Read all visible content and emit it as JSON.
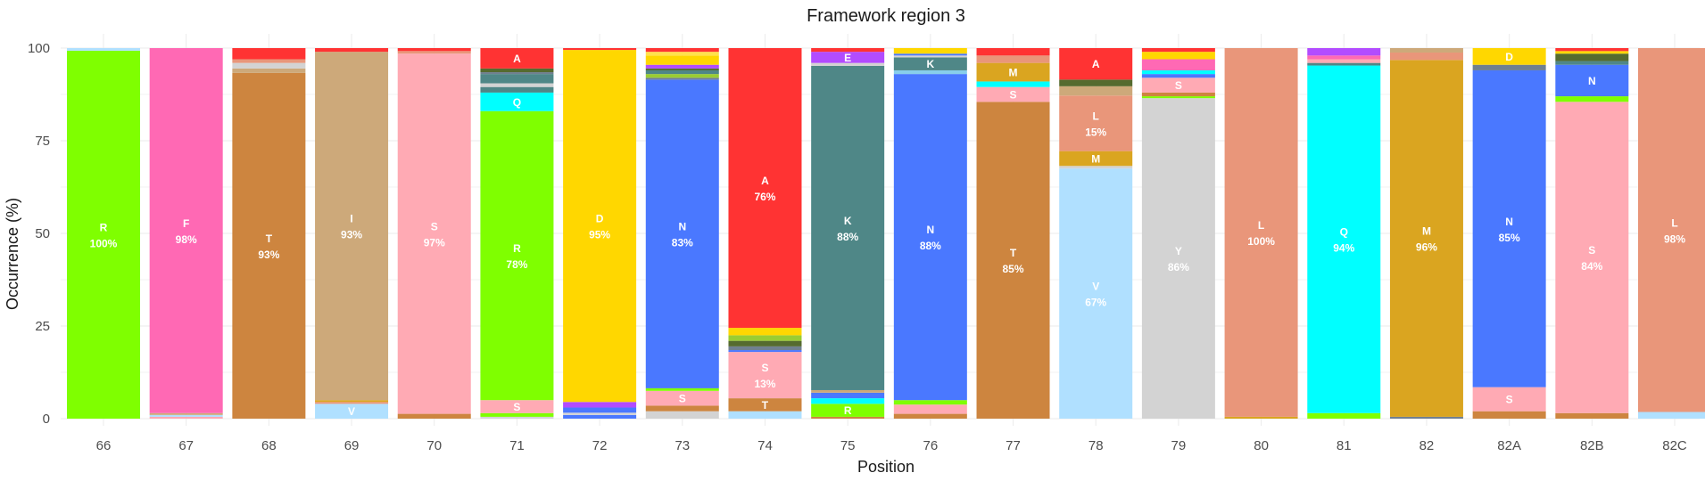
{
  "chart_data": {
    "type": "bar",
    "stacked": true,
    "title": "Framework region 3",
    "xlabel": "Position",
    "ylabel": "Occurrence (%)",
    "ylim": [
      0,
      100
    ],
    "yticks": [
      0,
      25,
      50,
      75,
      100
    ],
    "grid": true,
    "legend": "none",
    "categories": [
      "66",
      "67",
      "68",
      "69",
      "70",
      "71",
      "72",
      "73",
      "74",
      "75",
      "76",
      "77",
      "78",
      "79",
      "80",
      "81",
      "82",
      "82A",
      "82B",
      "82C"
    ],
    "colors": {
      "A": "#ff3333",
      "R": "#7fff00",
      "N": "#4a78ff",
      "D": "#ffd700",
      "C": "#ffe14d",
      "Q": "#00ffff",
      "E": "#b24cff",
      "G": "#ededed",
      "H": "#87ceeb",
      "I": "#cda97a",
      "L": "#e9967a",
      "K": "#4f8787",
      "M": "#daa520",
      "F": "#ff69b4",
      "P": "#b8860b",
      "S": "#ffaab4",
      "T": "#cd853f",
      "W": "#556b2f",
      "Y": "#d3d3d3",
      "V": "#b0e0ff",
      "X": "#708090",
      "Z": "#9acd32"
    },
    "bars": [
      {
        "position": "66",
        "segments": [
          {
            "aa": "R",
            "value": 99.3,
            "label": "R",
            "pct": "100%"
          },
          {
            "aa": "V",
            "value": 0.7
          }
        ]
      },
      {
        "position": "67",
        "segments": [
          {
            "aa": "S",
            "value": 0.5
          },
          {
            "aa": "V",
            "value": 0.5
          },
          {
            "aa": "I",
            "value": 0.5
          },
          {
            "aa": "F",
            "value": 98.5,
            "label": "F",
            "pct": "98%"
          }
        ]
      },
      {
        "position": "68",
        "segments": [
          {
            "aa": "T",
            "value": 93.3,
            "label": "T",
            "pct": "93%"
          },
          {
            "aa": "I",
            "value": 1.2
          },
          {
            "aa": "Y",
            "value": 1.5
          },
          {
            "aa": "L",
            "value": 1.0
          },
          {
            "aa": "A",
            "value": 3.0
          }
        ]
      },
      {
        "position": "69",
        "segments": [
          {
            "aa": "V",
            "value": 4.0,
            "label": "V"
          },
          {
            "aa": "L",
            "value": 0.5
          },
          {
            "aa": "M",
            "value": 0.5
          },
          {
            "aa": "I",
            "value": 94.0,
            "label": "I",
            "pct": "93%"
          },
          {
            "aa": "A",
            "value": 1.0
          }
        ]
      },
      {
        "position": "70",
        "segments": [
          {
            "aa": "T",
            "value": 1.3
          },
          {
            "aa": "S",
            "value": 97.2,
            "label": "S",
            "pct": "97%"
          },
          {
            "aa": "L",
            "value": 0.7
          },
          {
            "aa": "A",
            "value": 0.8
          }
        ]
      },
      {
        "position": "71",
        "segments": [
          {
            "aa": "Y",
            "value": 0.5
          },
          {
            "aa": "R",
            "value": 1.0
          },
          {
            "aa": "S",
            "value": 3.5,
            "label": "S"
          },
          {
            "aa": "R",
            "value": 78.0,
            "label": "R",
            "pct": "78%"
          },
          {
            "aa": "Q",
            "value": 5.0,
            "label": "Q"
          },
          {
            "aa": "K",
            "value": 1.5
          },
          {
            "aa": "Y",
            "value": 1.0
          },
          {
            "aa": "K",
            "value": 2.5
          },
          {
            "aa": "X",
            "value": 0.5
          },
          {
            "aa": "W",
            "value": 1.0
          },
          {
            "aa": "A",
            "value": 5.5,
            "label": "A"
          }
        ]
      },
      {
        "position": "72",
        "segments": [
          {
            "aa": "N",
            "value": 1.0
          },
          {
            "aa": "Y",
            "value": 0.6
          },
          {
            "aa": "N",
            "value": 1.4
          },
          {
            "aa": "E",
            "value": 1.5
          },
          {
            "aa": "D",
            "value": 95.0,
            "label": "D",
            "pct": "95%"
          },
          {
            "aa": "A",
            "value": 0.5
          }
        ]
      },
      {
        "position": "73",
        "segments": [
          {
            "aa": "Y",
            "value": 2.0
          },
          {
            "aa": "T",
            "value": 1.5
          },
          {
            "aa": "S",
            "value": 4.0,
            "label": "S"
          },
          {
            "aa": "R",
            "value": 0.7
          },
          {
            "aa": "N",
            "value": 83.3,
            "label": "N",
            "pct": "83%"
          },
          {
            "aa": "X",
            "value": 0.5
          },
          {
            "aa": "Z",
            "value": 1.0
          },
          {
            "aa": "K",
            "value": 1.0
          },
          {
            "aa": "W",
            "value": 0.5
          },
          {
            "aa": "E",
            "value": 1.0
          },
          {
            "aa": "D",
            "value": 2.5
          },
          {
            "aa": "C",
            "value": 1.0
          },
          {
            "aa": "A",
            "value": 1.0
          }
        ]
      },
      {
        "position": "74",
        "segments": [
          {
            "aa": "V",
            "value": 2.0
          },
          {
            "aa": "T",
            "value": 3.5,
            "label": "T"
          },
          {
            "aa": "S",
            "value": 12.5,
            "label": "S",
            "pct": "13%"
          },
          {
            "aa": "N",
            "value": 0.5
          },
          {
            "aa": "X",
            "value": 1.0
          },
          {
            "aa": "W",
            "value": 1.5
          },
          {
            "aa": "Z",
            "value": 1.5
          },
          {
            "aa": "D",
            "value": 2.0
          },
          {
            "aa": "A",
            "value": 75.5,
            "label": "A",
            "pct": "76%"
          }
        ]
      },
      {
        "position": "75",
        "segments": [
          {
            "aa": "T",
            "value": 0.5
          },
          {
            "aa": "R",
            "value": 3.5,
            "label": "R"
          },
          {
            "aa": "Q",
            "value": 1.5
          },
          {
            "aa": "N",
            "value": 1.5
          },
          {
            "aa": "I",
            "value": 0.7
          },
          {
            "aa": "K",
            "value": 87.5,
            "label": "K",
            "pct": "88%"
          },
          {
            "aa": "Y",
            "value": 0.8
          },
          {
            "aa": "E",
            "value": 3.0,
            "label": "E"
          },
          {
            "aa": "A",
            "value": 1.0
          }
        ]
      },
      {
        "position": "76",
        "segments": [
          {
            "aa": "T",
            "value": 1.3
          },
          {
            "aa": "S",
            "value": 2.5
          },
          {
            "aa": "R",
            "value": 1.2
          },
          {
            "aa": "N",
            "value": 88.0,
            "label": "N",
            "pct": "88%"
          },
          {
            "aa": "H",
            "value": 1.0
          },
          {
            "aa": "K",
            "value": 3.5,
            "label": "K"
          },
          {
            "aa": "Y",
            "value": 0.5
          },
          {
            "aa": "N",
            "value": 0.5
          },
          {
            "aa": "D",
            "value": 1.5
          }
        ]
      },
      {
        "position": "77",
        "segments": [
          {
            "aa": "T",
            "value": 85.5,
            "label": "T",
            "pct": "85%"
          },
          {
            "aa": "S",
            "value": 4.0,
            "label": "S"
          },
          {
            "aa": "Q",
            "value": 1.5
          },
          {
            "aa": "M",
            "value": 5.0,
            "label": "M"
          },
          {
            "aa": "L",
            "value": 2.0
          },
          {
            "aa": "A",
            "value": 2.0
          }
        ]
      },
      {
        "position": "78",
        "segments": [
          {
            "aa": "V",
            "value": 67.5,
            "label": "V",
            "pct": "67%"
          },
          {
            "aa": "Y",
            "value": 0.7
          },
          {
            "aa": "M",
            "value": 4.0,
            "label": "M"
          },
          {
            "aa": "L",
            "value": 15.0,
            "label": "L",
            "pct": "15%"
          },
          {
            "aa": "I",
            "value": 2.5
          },
          {
            "aa": "W",
            "value": 1.8
          },
          {
            "aa": "A",
            "value": 8.5,
            "label": "A"
          }
        ]
      },
      {
        "position": "79",
        "segments": [
          {
            "aa": "Y",
            "value": 86.5,
            "label": "Y",
            "pct": "86%"
          },
          {
            "aa": "R",
            "value": 0.5
          },
          {
            "aa": "T",
            "value": 1.0
          },
          {
            "aa": "S",
            "value": 4.0,
            "label": "S"
          },
          {
            "aa": "N",
            "value": 1.0
          },
          {
            "aa": "Q",
            "value": 1.0
          },
          {
            "aa": "F",
            "value": 3.0
          },
          {
            "aa": "D",
            "value": 2.0
          },
          {
            "aa": "A",
            "value": 1.0
          }
        ]
      },
      {
        "position": "80",
        "segments": [
          {
            "aa": "M",
            "value": 0.5
          },
          {
            "aa": "L",
            "value": 99.5,
            "label": "L",
            "pct": "100%"
          }
        ]
      },
      {
        "position": "81",
        "segments": [
          {
            "aa": "R",
            "value": 1.5
          },
          {
            "aa": "Q",
            "value": 93.8,
            "label": "Q",
            "pct": "94%"
          },
          {
            "aa": "K",
            "value": 0.7
          },
          {
            "aa": "S",
            "value": 1.0
          },
          {
            "aa": "F",
            "value": 1.0
          },
          {
            "aa": "E",
            "value": 2.0
          }
        ]
      },
      {
        "position": "82",
        "segments": [
          {
            "aa": "X",
            "value": 0.5
          },
          {
            "aa": "M",
            "value": 96.3,
            "label": "M",
            "pct": "96%"
          },
          {
            "aa": "L",
            "value": 2.0
          },
          {
            "aa": "I",
            "value": 1.2
          }
        ]
      },
      {
        "position": "82A",
        "segments": [
          {
            "aa": "T",
            "value": 2.0
          },
          {
            "aa": "S",
            "value": 6.5,
            "label": "S"
          },
          {
            "aa": "N",
            "value": 85.5,
            "label": "N",
            "pct": "85%"
          },
          {
            "aa": "X",
            "value": 1.5
          },
          {
            "aa": "D",
            "value": 4.5,
            "label": "D"
          }
        ]
      },
      {
        "position": "82B",
        "segments": [
          {
            "aa": "T",
            "value": 1.5
          },
          {
            "aa": "S",
            "value": 84.0,
            "label": "S",
            "pct": "84%"
          },
          {
            "aa": "R",
            "value": 1.5
          },
          {
            "aa": "N",
            "value": 8.5,
            "label": "N"
          },
          {
            "aa": "K",
            "value": 1.0
          },
          {
            "aa": "W",
            "value": 2.0
          },
          {
            "aa": "D",
            "value": 0.7
          },
          {
            "aa": "A",
            "value": 0.8
          }
        ]
      },
      {
        "position": "82C",
        "segments": [
          {
            "aa": "V",
            "value": 1.8
          },
          {
            "aa": "L",
            "value": 98.2,
            "label": "L",
            "pct": "98%"
          }
        ]
      }
    ]
  }
}
